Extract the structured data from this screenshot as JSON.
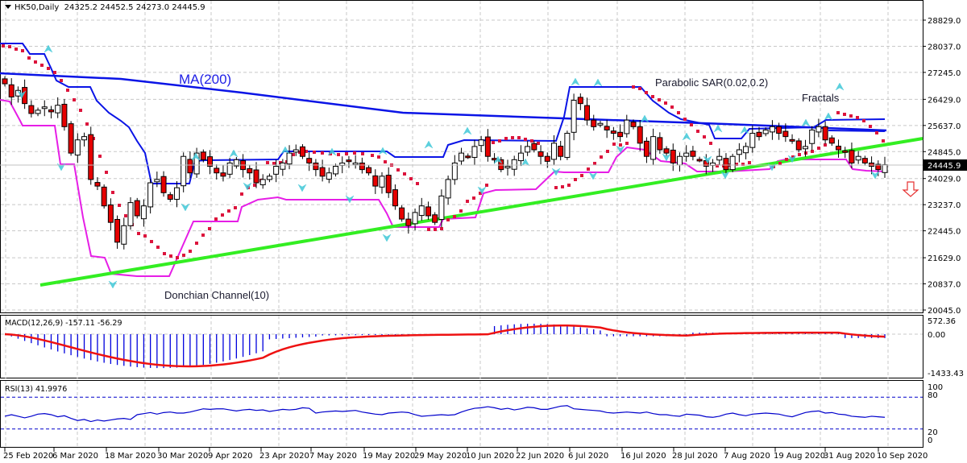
{
  "header": {
    "symbol": "HK50,Daily",
    "ohlc": "24325.2 24452.5 24273.0 24445.9"
  },
  "annotations": {
    "ma": "MA(200)",
    "sar": "Parabolic SAR(0.02,0.2)",
    "fractals": "Fractals",
    "donchian": "Donchian Channel(10)"
  },
  "price_axis": {
    "ticks": [
      "28829.0",
      "28037.0",
      "27245.0",
      "26429.0",
      "25637.0",
      "24845.0",
      "24029.0",
      "23237.0",
      "22445.0",
      "21629.0",
      "20837.0",
      "20045.0"
    ],
    "current": "24445.9"
  },
  "macd": {
    "label": "MACD(12,26,9) -157.11 -56.29",
    "ticks": [
      "572.36",
      "0.00",
      "-1433.43"
    ]
  },
  "rsi": {
    "label": "RSI(13) 41.9976",
    "ticks": [
      "100",
      "80",
      "20",
      "0"
    ]
  },
  "time_axis": {
    "labels": [
      "25 Feb 2020",
      "6 Mar 2020",
      "18 Mar 2020",
      "30 Mar 2020",
      "9 Apr 2020",
      "23 Apr 2020",
      "7 May 2020",
      "19 May 2020",
      "29 May 2020",
      "10 Jun 2020",
      "22 Jun 2020",
      "6 Jul 2020",
      "16 Jul 2020",
      "28 Jul 2020",
      "7 Aug 2020",
      "19 Aug 2020",
      "31 Aug 2020",
      "10 Sep 2020"
    ]
  },
  "colors": {
    "bull": "#ffffff",
    "bear": "#e60000",
    "ma200": "#0a14e6",
    "donchian_upper": "#0a14e6",
    "donchian_lower": "#e61ee6",
    "sar": "#dc143c",
    "fractal": "#40c8d8",
    "trendline": "#33ee22",
    "macd_hist": "#0000dd",
    "macd_signal": "#ee1111",
    "rsi": "#0000cc",
    "arrow": "#e63030"
  },
  "chart_data": {
    "type": "candlestick",
    "title": "HK50, Daily",
    "xlabel": "",
    "ylabel": "",
    "ylim": [
      20045,
      28829
    ],
    "grid": true,
    "dates": [
      "25 Feb 2020",
      "6 Mar 2020",
      "18 Mar 2020",
      "30 Mar 2020",
      "9 Apr 2020",
      "23 Apr 2020",
      "7 May 2020",
      "19 May 2020",
      "29 May 2020",
      "10 Jun 2020",
      "22 Jun 2020",
      "6 Jul 2020",
      "16 Jul 2020",
      "28 Jul 2020",
      "7 Aug 2020",
      "19 Aug 2020",
      "31 Aug 2020",
      "10 Sep 2020"
    ],
    "last_bar": {
      "open": 24325.2,
      "high": 24452.5,
      "low": 24273.0,
      "close": 24445.9
    },
    "candles_close_approx": [
      26900,
      26500,
      26700,
      26300,
      26000,
      26100,
      26200,
      26050,
      26250,
      25600,
      24800,
      25200,
      25300,
      24000,
      23800,
      23200,
      22700,
      22100,
      22600,
      23300,
      22900,
      23200,
      23900,
      24000,
      23600,
      23400,
      23750,
      24700,
      24200,
      24800,
      24600,
      24400,
      24200,
      24100,
      24500,
      24600,
      24300,
      24200,
      23900,
      24000,
      24100,
      24400,
      24500,
      24800,
      24900,
      24700,
      24500,
      24300,
      24100,
      24200,
      24400,
      24500,
      24550,
      24500,
      24300,
      24200,
      23800,
      24100,
      23600,
      23200,
      22800,
      22600,
      23000,
      23200,
      22900,
      22700,
      23500,
      24000,
      24500,
      24800,
      24700,
      25000,
      25200,
      24700,
      24600,
      24300,
      24400,
      24600,
      24800,
      25000,
      24900,
      24700,
      24550,
      25100,
      24700,
      25400,
      26400,
      26300,
      25800,
      25600,
      25700,
      25500,
      25400,
      25300,
      25800,
      25600,
      25100,
      24700,
      25300,
      24900,
      24800,
      24500,
      24700,
      24800,
      24700,
      24600,
      24400,
      24500,
      24700,
      24300,
      24700,
      24900,
      25000,
      25400,
      25300,
      25500,
      25600,
      25400,
      25300,
      25200,
      24900,
      25000,
      25500,
      25600,
      25200,
      25100,
      24900,
      24850,
      24500,
      24700,
      24500,
      24400,
      24300,
      24446
    ],
    "indicators": {
      "ma200": {
        "start": 27100,
        "end": 25400
      },
      "parabolic_sar": {
        "step": 0.02,
        "max": 0.2
      },
      "donchian_period": 10,
      "trendline": {
        "x1_date": "~2 Mar 2020",
        "y1": 20900,
        "x2_date": "10 Sep 2020+",
        "y2": 25050
      }
    },
    "subcharts": [
      {
        "name": "MACD(12,26,9)",
        "main": -157.11,
        "signal": -56.29,
        "ylim": [
          -1433.43,
          572.36
        ]
      },
      {
        "name": "RSI(13)",
        "value": 41.9976,
        "levels": [
          20,
          80
        ],
        "ylim": [
          0,
          100
        ]
      }
    ],
    "signal": "down arrow (bearish)"
  }
}
